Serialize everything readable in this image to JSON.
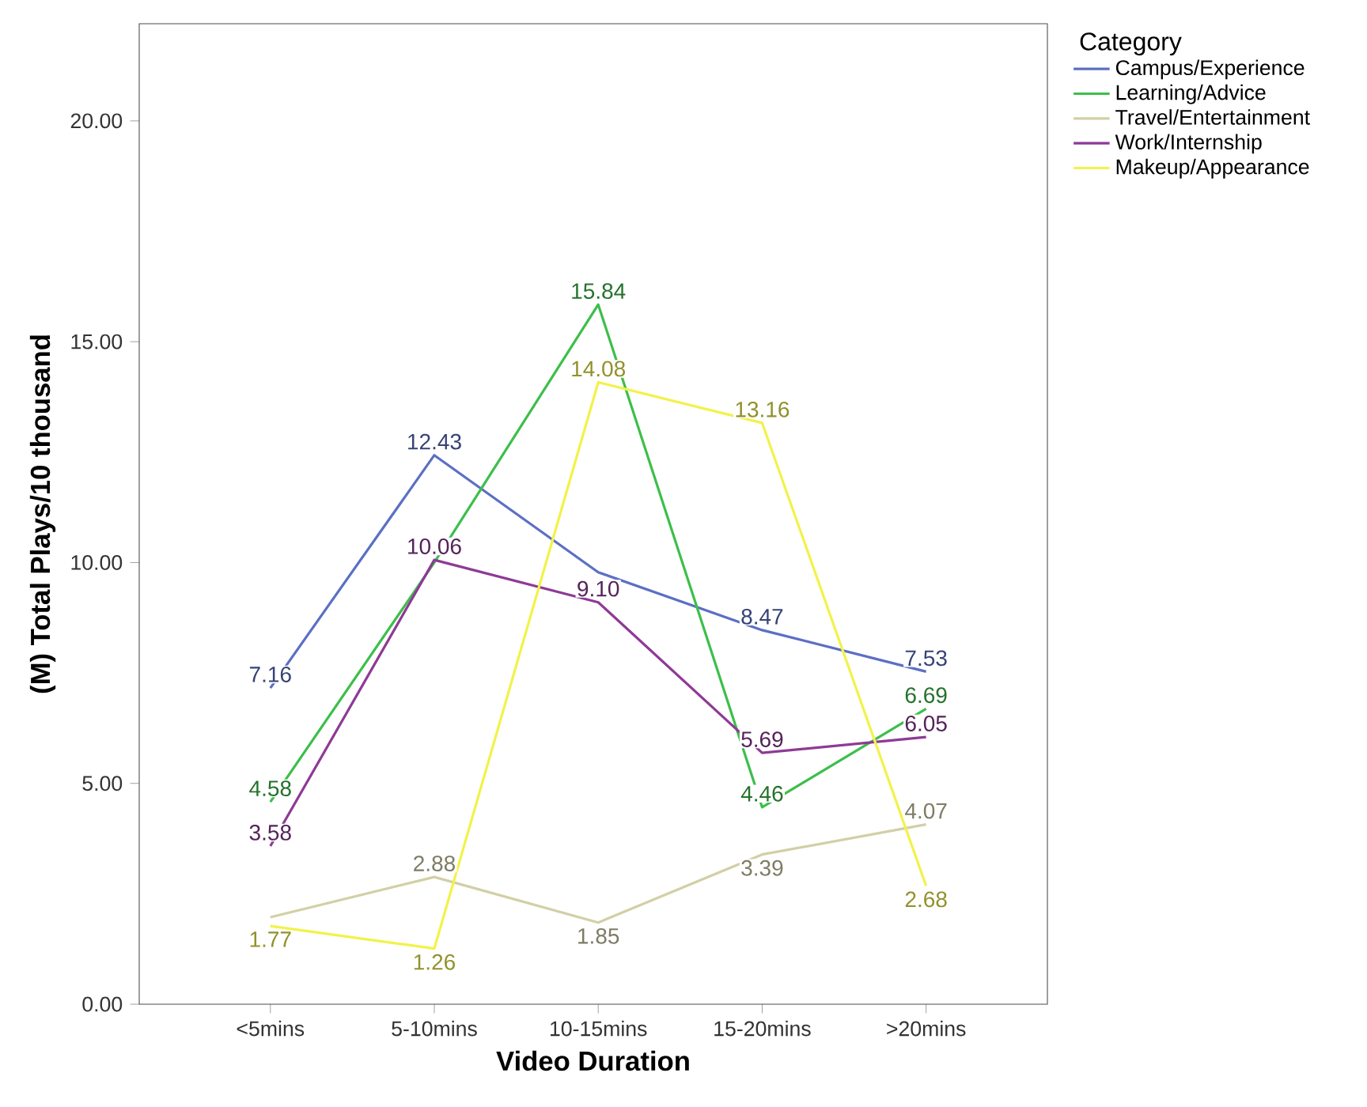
{
  "chart_data": {
    "type": "line",
    "xlabel": "Video Duration",
    "ylabel": "(M) Total Plays/10 thousand",
    "legend_title": "Category",
    "categories": [
      "<5mins",
      "5-10mins",
      "10-15mins",
      "15-20mins",
      ">20mins"
    ],
    "series": [
      {
        "name": "Campus/Experience",
        "color": "#5b6fc4",
        "values": [
          7.16,
          12.43,
          9.78,
          8.47,
          7.53
        ],
        "value_labels": [
          "7.16",
          "12.43",
          null,
          "8.47",
          "7.53"
        ]
      },
      {
        "name": "Learning/Advice",
        "color": "#3cbf4a",
        "values": [
          4.58,
          10.0,
          15.84,
          4.46,
          6.69
        ],
        "value_labels": [
          "4.58",
          null,
          "15.84",
          "4.46",
          "6.69"
        ]
      },
      {
        "name": "Travel/Entertainment",
        "color": "#d3cfa6",
        "values": [
          1.97,
          2.88,
          1.85,
          3.39,
          4.07
        ],
        "value_labels": [
          null,
          "2.88",
          "1.85",
          "3.39",
          "4.07"
        ]
      },
      {
        "name": "Work/Internship",
        "color": "#8e3a96",
        "values": [
          3.58,
          10.06,
          9.1,
          5.69,
          6.05
        ],
        "value_labels": [
          "3.58",
          "10.06",
          "9.10",
          "5.69",
          "6.05"
        ]
      },
      {
        "name": "Makeup/Appearance",
        "color": "#f2f24a",
        "values": [
          1.77,
          1.26,
          14.08,
          13.16,
          2.68
        ],
        "value_labels": [
          "1.77",
          "1.26",
          "14.08",
          "13.16",
          "2.68"
        ]
      }
    ],
    "ylim": [
      0,
      22.2
    ],
    "yticks": [
      {
        "value": 0,
        "label": "0.00"
      },
      {
        "value": 5,
        "label": "5.00"
      },
      {
        "value": 10,
        "label": "10.00"
      },
      {
        "value": 15,
        "label": "15.00"
      },
      {
        "value": 20,
        "label": "20.00"
      }
    ],
    "grid": false,
    "legend": "top right",
    "marker": "none",
    "line_style": "solid"
  }
}
